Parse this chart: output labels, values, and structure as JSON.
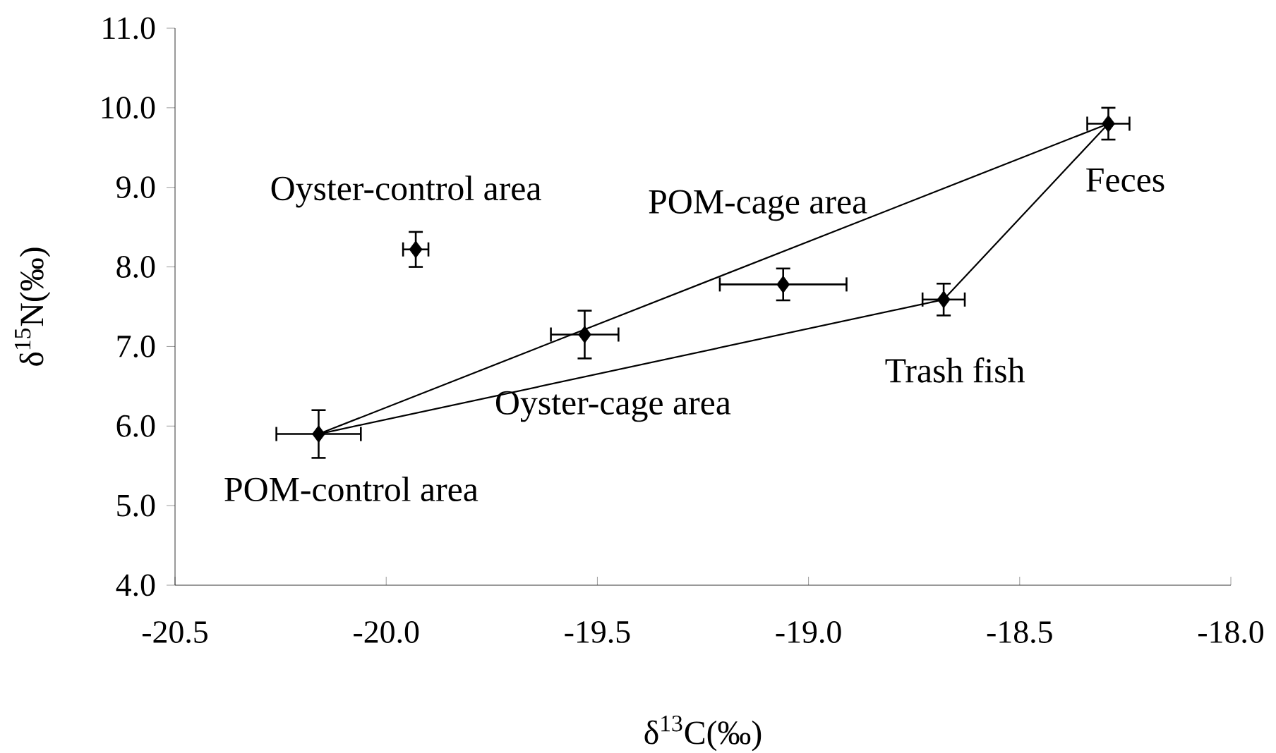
{
  "chart_data": {
    "type": "scatter",
    "xlabel": "δ$^{13}$C(‰)",
    "ylabel": "δ$^{15}$N(‰)",
    "xlim": [
      -20.5,
      -18.0
    ],
    "xticks": [
      -20.5,
      {
        "value": -20.0,
        "label": "-20.0"
      },
      -19.5,
      {
        "value": -19.0,
        "label": "-19.0"
      },
      -18.5,
      {
        "value": -18.0,
        "label": "-18.0"
      }
    ],
    "ylim": [
      4.0,
      11.0
    ],
    "yticks": [
      {
        "value": 4,
        "label": "4.0"
      },
      {
        "value": 5,
        "label": "5.0"
      },
      {
        "value": 6,
        "label": "6.0"
      },
      {
        "value": 7,
        "label": "7.0"
      },
      {
        "value": 8,
        "label": "8.0"
      },
      {
        "value": 9,
        "label": "9.0"
      },
      {
        "value": 10,
        "label": "10.0"
      },
      {
        "value": 11,
        "label": "11.0"
      }
    ],
    "grid": false,
    "series": [
      {
        "type": "line",
        "color": "#000000",
        "marker": "none",
        "x": [
          -20.16,
          -18.29
        ],
        "values": [
          5.9,
          9.8
        ]
      },
      {
        "type": "line",
        "color": "#000000",
        "marker": "none",
        "x": [
          -20.16,
          -18.68,
          -18.29
        ],
        "values": [
          5.9,
          7.59,
          9.8
        ]
      },
      {
        "color": "#000000",
        "marker": "diamond",
        "x": [
          -20.16,
          -19.93,
          -19.53,
          -19.06,
          -18.68,
          -18.29
        ],
        "values": [
          5.9,
          8.22,
          7.15,
          7.78,
          7.59,
          9.8
        ],
        "errors": [
          0.3,
          0.22,
          0.3,
          0.2,
          0.2,
          0.2
        ],
        "xerrors": [
          0.1,
          0.03,
          0.08,
          0.15,
          0.05,
          0.05
        ]
      }
    ],
    "annotations": [
      "POM-control area",
      "Oyster-control area",
      "Oyster-cage area",
      "POM-cage area",
      "Trash fish",
      "Feces"
    ]
  }
}
